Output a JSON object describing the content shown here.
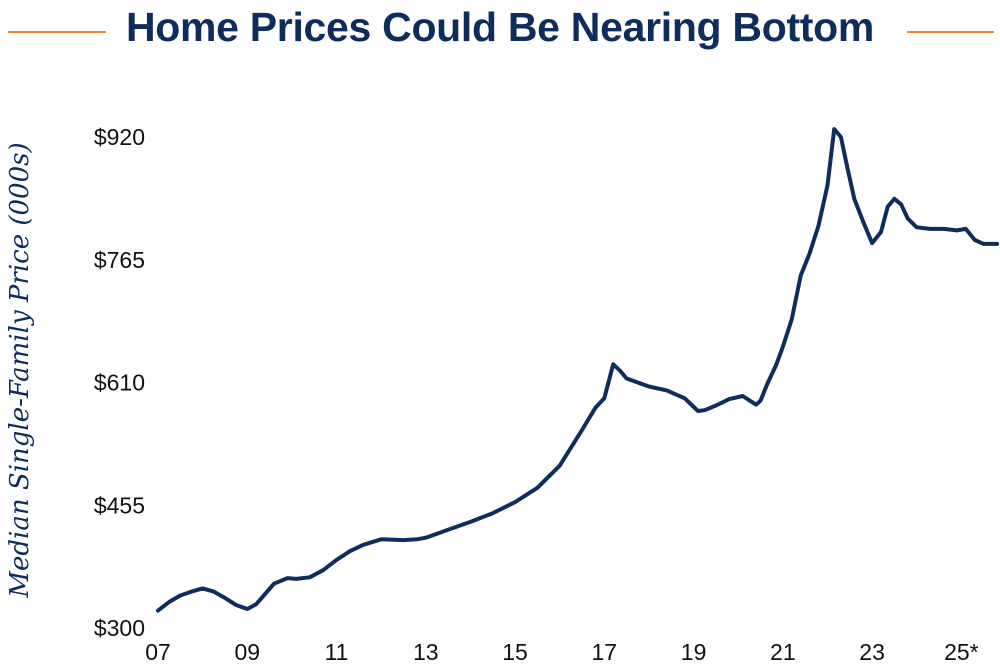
{
  "chart_data": {
    "type": "line",
    "title": "Home Prices Could Be Nearing Bottom",
    "xlabel": "",
    "ylabel": "Median Single-Family Price (000s)",
    "x_tick_labels": [
      "07",
      "09",
      "11",
      "13",
      "15",
      "17",
      "19",
      "21",
      "23",
      "25*"
    ],
    "x_tick_values": [
      2007,
      2009,
      2011,
      2013,
      2015,
      2017,
      2019,
      2021,
      2023,
      2025
    ],
    "y_tick_labels": [
      "$300",
      "$455",
      "$610",
      "$765",
      "$920"
    ],
    "y_tick_values": [
      300,
      455,
      610,
      765,
      920
    ],
    "xlim": [
      2007,
      2026
    ],
    "ylim": [
      300,
      920
    ],
    "grid": false,
    "colors": {
      "line": "#0e2c5c",
      "accent": "#e8863a",
      "title": "#0e2c5c"
    },
    "series": [
      {
        "name": "Median Single-Family Price",
        "x": [
          2007.0,
          2007.25,
          2007.5,
          2007.75,
          2008.0,
          2008.25,
          2008.5,
          2008.75,
          2009.0,
          2009.2,
          2009.4,
          2009.6,
          2009.9,
          2010.1,
          2010.4,
          2010.7,
          2011.0,
          2011.3,
          2011.6,
          2012.0,
          2012.5,
          2012.8,
          2013.0,
          2013.5,
          2014.0,
          2014.5,
          2015.0,
          2015.5,
          2016.0,
          2016.5,
          2016.8,
          2017.0,
          2017.2,
          2017.35,
          2017.5,
          2017.7,
          2018.0,
          2018.4,
          2018.8,
          2019.1,
          2019.25,
          2019.5,
          2019.8,
          2020.1,
          2020.4,
          2020.5,
          2020.65,
          2020.85,
          2021.0,
          2021.2,
          2021.4,
          2021.6,
          2021.8,
          2022.0,
          2022.15,
          2022.3,
          2022.45,
          2022.6,
          2022.8,
          2023.0,
          2023.2,
          2023.35,
          2023.5,
          2023.65,
          2023.8,
          2024.0,
          2024.3,
          2024.6,
          2024.9,
          2025.1,
          2025.3,
          2025.5,
          2025.8
        ],
        "values": [
          322,
          333,
          341,
          346,
          350,
          346,
          338,
          329,
          324,
          330,
          343,
          356,
          363,
          362,
          364,
          373,
          386,
          397,
          405,
          412,
          411,
          412,
          414,
          424,
          434,
          445,
          459,
          477,
          505,
          550,
          578,
          590,
          633,
          625,
          615,
          611,
          605,
          600,
          590,
          574,
          575,
          581,
          589,
          593,
          582,
          587,
          608,
          632,
          655,
          690,
          745,
          773,
          808,
          859,
          930,
          920,
          880,
          842,
          813,
          786,
          800,
          832,
          842,
          835,
          817,
          806,
          804,
          804,
          802,
          804,
          790,
          785,
          785
        ]
      }
    ]
  }
}
